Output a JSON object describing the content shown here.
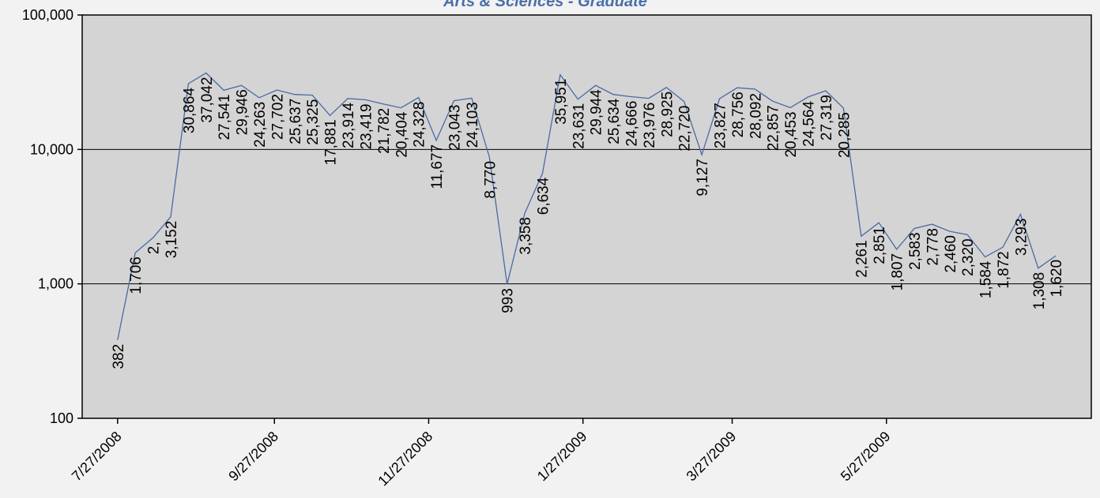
{
  "chart_data": {
    "type": "line",
    "title": "Arts & Sciences - Graduate",
    "xlabel": "",
    "ylabel": "",
    "y_scale": "log",
    "ylim": [
      100,
      100000
    ],
    "y_ticks": [
      {
        "value": 100,
        "label": "100"
      },
      {
        "value": 1000,
        "label": "1,000"
      },
      {
        "value": 10000,
        "label": "10,000"
      },
      {
        "value": 100000,
        "label": "100,000"
      }
    ],
    "x_ticks": [
      "7/27/2008",
      "9/27/2008",
      "11/27/2008",
      "1/27/2009",
      "3/27/2009",
      "5/27/2009"
    ],
    "xlim": [
      "2008-07-13",
      "2009-08-16"
    ],
    "grid": "horizontal major lines at 1,000 and 10,000",
    "legend": "none",
    "colors": {
      "line": "#4a6aa5",
      "plot_background": "#d4d4d4",
      "page_background": "#f2f2f2",
      "title": "#4a6fa8",
      "gridline": "#000000"
    },
    "series": [
      {
        "points": [
          {
            "x": "2008-07-27",
            "y": 382,
            "label": "382"
          },
          {
            "x": "2008-08-03",
            "y": 1706,
            "label": "1,706"
          },
          {
            "x": "2008-08-10",
            "y": 2200,
            "label": "2,"
          },
          {
            "x": "2008-08-17",
            "y": 3152,
            "label": "3,152"
          },
          {
            "x": "2008-08-24",
            "y": 30864,
            "label": "30,864"
          },
          {
            "x": "2008-08-31",
            "y": 37042,
            "label": "37,042"
          },
          {
            "x": "2008-09-07",
            "y": 27541,
            "label": "27,541"
          },
          {
            "x": "2008-09-14",
            "y": 29946,
            "label": "29,946"
          },
          {
            "x": "2008-09-21",
            "y": 24263,
            "label": "24,263"
          },
          {
            "x": "2008-09-28",
            "y": 27702,
            "label": "27,702"
          },
          {
            "x": "2008-10-05",
            "y": 25637,
            "label": "25,637"
          },
          {
            "x": "2008-10-12",
            "y": 25325,
            "label": "25,325"
          },
          {
            "x": "2008-10-19",
            "y": 17881,
            "label": "17,881"
          },
          {
            "x": "2008-10-26",
            "y": 23914,
            "label": "23,914"
          },
          {
            "x": "2008-11-02",
            "y": 23419,
            "label": "23,419"
          },
          {
            "x": "2008-11-09",
            "y": 21782,
            "label": "21,782"
          },
          {
            "x": "2008-11-16",
            "y": 20404,
            "label": "20,404"
          },
          {
            "x": "2008-11-23",
            "y": 24328,
            "label": "24,328"
          },
          {
            "x": "2008-11-30",
            "y": 11677,
            "label": "11,677"
          },
          {
            "x": "2008-12-07",
            "y": 23043,
            "label": "23,043"
          },
          {
            "x": "2008-12-14",
            "y": 24103,
            "label": "24,103"
          },
          {
            "x": "2008-12-21",
            "y": 8770,
            "label": "8,770"
          },
          {
            "x": "2008-12-28",
            "y": 993,
            "label": "993"
          },
          {
            "x": "2009-01-04",
            "y": 3358,
            "label": "3,358"
          },
          {
            "x": "2009-01-11",
            "y": 6634,
            "label": "6,634"
          },
          {
            "x": "2009-01-18",
            "y": 35951,
            "label": "35,951"
          },
          {
            "x": "2009-01-25",
            "y": 23631,
            "label": "23,631"
          },
          {
            "x": "2009-02-01",
            "y": 29944,
            "label": "29,944"
          },
          {
            "x": "2009-02-08",
            "y": 25634,
            "label": "25,634"
          },
          {
            "x": "2009-02-15",
            "y": 24666,
            "label": "24,666"
          },
          {
            "x": "2009-02-22",
            "y": 23976,
            "label": "23,976"
          },
          {
            "x": "2009-03-01",
            "y": 28925,
            "label": "28,925"
          },
          {
            "x": "2009-03-08",
            "y": 22720,
            "label": "22,720"
          },
          {
            "x": "2009-03-15",
            "y": 9127,
            "label": "9,127"
          },
          {
            "x": "2009-03-22",
            "y": 23827,
            "label": "23,827"
          },
          {
            "x": "2009-03-29",
            "y": 28756,
            "label": "28,756"
          },
          {
            "x": "2009-04-05",
            "y": 28092,
            "label": "28,092"
          },
          {
            "x": "2009-04-12",
            "y": 22857,
            "label": "22,857"
          },
          {
            "x": "2009-04-19",
            "y": 20453,
            "label": "20,453"
          },
          {
            "x": "2009-04-26",
            "y": 24564,
            "label": "24,564"
          },
          {
            "x": "2009-05-03",
            "y": 27319,
            "label": "27,319"
          },
          {
            "x": "2009-05-10",
            "y": 20285,
            "label": "20,285"
          },
          {
            "x": "2009-05-17",
            "y": 2261,
            "label": "2,261"
          },
          {
            "x": "2009-05-24",
            "y": 2851,
            "label": "2,851"
          },
          {
            "x": "2009-05-31",
            "y": 1807,
            "label": "1,807"
          },
          {
            "x": "2009-06-07",
            "y": 2583,
            "label": "2,583"
          },
          {
            "x": "2009-06-14",
            "y": 2778,
            "label": "2,778"
          },
          {
            "x": "2009-06-21",
            "y": 2460,
            "label": "2,460"
          },
          {
            "x": "2009-06-28",
            "y": 2320,
            "label": "2,320"
          },
          {
            "x": "2009-07-05",
            "y": 1584,
            "label": "1,584"
          },
          {
            "x": "2009-07-12",
            "y": 1872,
            "label": "1,872"
          },
          {
            "x": "2009-07-19",
            "y": 3293,
            "label": "3,293"
          },
          {
            "x": "2009-07-26",
            "y": 1308,
            "label": "1,308"
          },
          {
            "x": "2009-08-02",
            "y": 1620,
            "label": "1,620"
          }
        ]
      }
    ]
  }
}
